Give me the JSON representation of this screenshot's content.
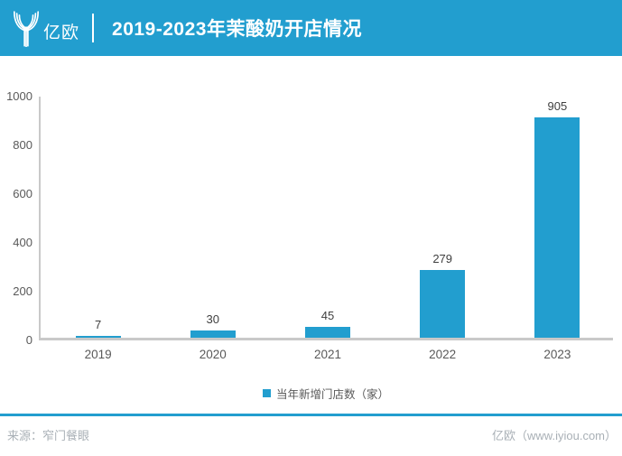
{
  "header": {
    "logo_text": "亿欧",
    "title": "2019-2023年茉酸奶开店情况"
  },
  "chart_data": {
    "type": "bar",
    "title": "2019-2023年茉酸奶开店情况",
    "categories": [
      "2019",
      "2020",
      "2021",
      "2022",
      "2023"
    ],
    "values": [
      7,
      30,
      45,
      279,
      905
    ],
    "series_name": "当年新增门店数（家）",
    "xlabel": "",
    "ylabel": "",
    "ylim": [
      0,
      1000
    ],
    "yticks": [
      0,
      200,
      400,
      600,
      800,
      1000
    ],
    "grid": false,
    "legend_position": "bottom",
    "bar_color": "#229ECF"
  },
  "legend": {
    "label": "当年新增门店数（家）"
  },
  "footer": {
    "source": "来源：窄门餐眼",
    "credit": "亿欧（www.iyiou.com）"
  },
  "colors": {
    "accent": "#229ECF",
    "axis_line": "#C9C9C9",
    "tick_text": "#595959",
    "value_text": "#404040",
    "footer_text": "#A9B0B6"
  }
}
